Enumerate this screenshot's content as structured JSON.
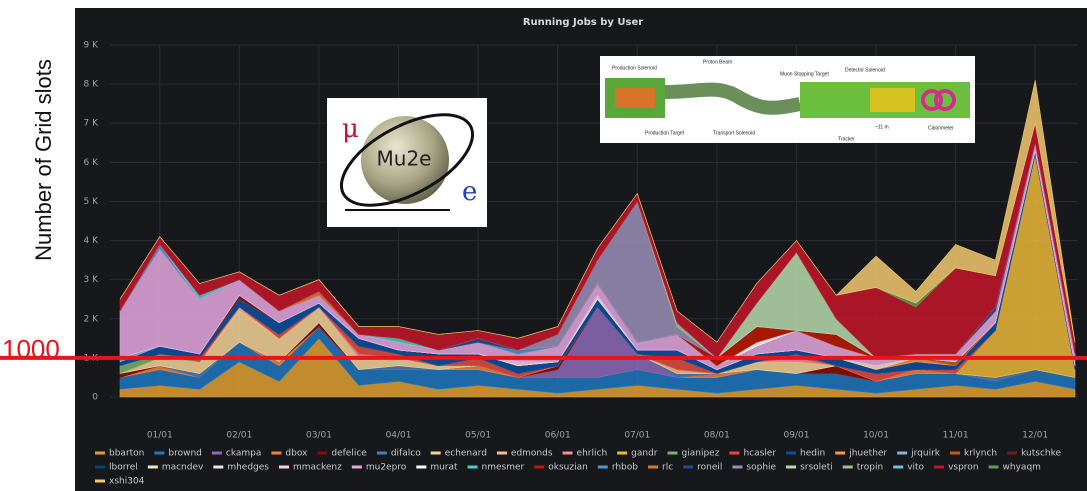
{
  "chart_data": {
    "type": "stacked-area",
    "title": "Running Jobs by User",
    "y_label": "Number of Grid slots",
    "threshold": 1000,
    "categories": [
      null,
      "01/01",
      null,
      "02/01",
      null,
      "03/01",
      null,
      "04/01",
      null,
      "05/01",
      null,
      "06/01",
      null,
      "07/01",
      null,
      "08/01",
      null,
      "09/01",
      null,
      "10/01",
      null,
      "11/01",
      null,
      "12/01",
      null
    ],
    "ylim": [
      0,
      9000
    ],
    "yticks": [
      0,
      {
        "value": 1000,
        "label": "1 K"
      },
      {
        "value": 2000,
        "label": "2 K"
      },
      {
        "value": 3000,
        "label": "3 K"
      },
      {
        "value": 4000,
        "label": "4 K"
      },
      {
        "value": 5000,
        "label": "5 K"
      },
      {
        "value": 6000,
        "label": "6 K"
      },
      {
        "value": 7000,
        "label": "7 K"
      },
      {
        "value": 8000,
        "label": "8 K"
      },
      {
        "value": 9000,
        "label": "9 K"
      }
    ],
    "grid": true,
    "series": [
      {
        "name": "bbarton",
        "color": "#E0A030",
        "values": [
          200,
          300,
          200,
          900,
          400,
          1500,
          300,
          400,
          200,
          300,
          200,
          100,
          200,
          300,
          200,
          100,
          200,
          300,
          200,
          100,
          200,
          300,
          200,
          400,
          200
        ]
      },
      {
        "name": "brownd",
        "color": "#1F78C1",
        "values": [
          300,
          400,
          300,
          500,
          400,
          300,
          400,
          300,
          500,
          400,
          300,
          400,
          300,
          400,
          300,
          400,
          500,
          300,
          400,
          300,
          400,
          300,
          200,
          300,
          300
        ]
      },
      {
        "name": "ckampa",
        "color": "#8E6AB8",
        "values": [
          0,
          0,
          0,
          0,
          0,
          0,
          0,
          0,
          0,
          0,
          0,
          200,
          1800,
          400,
          0,
          0,
          0,
          0,
          0,
          0,
          0,
          0,
          0,
          0,
          0
        ]
      },
      {
        "name": "dbox",
        "color": "#EF843C",
        "values": [
          0,
          100,
          0,
          0,
          100,
          0,
          0,
          0,
          0,
          100,
          0,
          0,
          0,
          0,
          0,
          100,
          0,
          0,
          0,
          0,
          100,
          0,
          0,
          0,
          0
        ]
      },
      {
        "name": "defelice",
        "color": "#890F02",
        "values": [
          100,
          0,
          0,
          0,
          0,
          100,
          0,
          0,
          0,
          0,
          0,
          100,
          0,
          0,
          0,
          0,
          0,
          0,
          200,
          0,
          0,
          0,
          0,
          0,
          0
        ]
      },
      {
        "name": "difalco",
        "color": "#447EBC",
        "values": [
          0,
          0,
          100,
          0,
          0,
          0,
          0,
          100,
          0,
          0,
          0,
          0,
          0,
          0,
          100,
          0,
          0,
          0,
          0,
          0,
          0,
          0,
          100,
          0,
          0
        ]
      },
      {
        "name": "echenard",
        "color": "#F4D598",
        "values": [
          0,
          200,
          300,
          800,
          600,
          400,
          300,
          200,
          100,
          0,
          0,
          0,
          0,
          0,
          0,
          0,
          200,
          300,
          0,
          0,
          0,
          0,
          0,
          0,
          0
        ]
      },
      {
        "name": "edmonds",
        "color": "#F9BA8F",
        "values": [
          0,
          0,
          0,
          100,
          0,
          0,
          0,
          0,
          0,
          0,
          0,
          0,
          0,
          0,
          100,
          0,
          0,
          0,
          0,
          0,
          0,
          0,
          0,
          0,
          0
        ]
      },
      {
        "name": "ehrlich",
        "color": "#F29191",
        "values": [
          0,
          0,
          0,
          0,
          0,
          0,
          100,
          0,
          0,
          0,
          0,
          0,
          0,
          0,
          0,
          0,
          0,
          100,
          0,
          0,
          0,
          0,
          0,
          0,
          0
        ]
      },
      {
        "name": "gandr",
        "color": "#EAB839",
        "values": [
          0,
          0,
          0,
          0,
          0,
          0,
          0,
          0,
          0,
          0,
          0,
          0,
          0,
          0,
          0,
          0,
          0,
          0,
          0,
          0,
          0,
          0,
          1200,
          5500,
          200
        ]
      },
      {
        "name": "gianipez",
        "color": "#7EB26D",
        "values": [
          200,
          100,
          0,
          0,
          0,
          0,
          0,
          0,
          0,
          0,
          0,
          0,
          0,
          0,
          0,
          0,
          0,
          0,
          0,
          0,
          0,
          0,
          0,
          0,
          0
        ]
      },
      {
        "name": "hcasler",
        "color": "#E24D42",
        "values": [
          0,
          0,
          100,
          0,
          100,
          0,
          200,
          100,
          0,
          200,
          100,
          0,
          0,
          0,
          300,
          0,
          0,
          100,
          0,
          200,
          0,
          100,
          0,
          0,
          0
        ]
      },
      {
        "name": "hedin",
        "color": "#0A50A1",
        "values": [
          100,
          200,
          100,
          200,
          300,
          100,
          200,
          100,
          200,
          100,
          200,
          100,
          200,
          100,
          200,
          100,
          200,
          100,
          200,
          100,
          200,
          100,
          200,
          100,
          100
        ]
      },
      {
        "name": "jhuether",
        "color": "#F9934E",
        "values": [
          0,
          0,
          0,
          0,
          0,
          0,
          0,
          0,
          0,
          0,
          0,
          0,
          0,
          0,
          0,
          0,
          0,
          0,
          0,
          0,
          100,
          0,
          0,
          0,
          0
        ]
      },
      {
        "name": "jrquirk",
        "color": "#82B5D8",
        "values": [
          100,
          0,
          0,
          0,
          0,
          0,
          0,
          0,
          0,
          0,
          0,
          0,
          0,
          0,
          0,
          0,
          0,
          0,
          0,
          0,
          0,
          0,
          0,
          0,
          0
        ]
      },
      {
        "name": "krlynch",
        "color": "#C15C17",
        "values": [
          0,
          0,
          0,
          0,
          0,
          0,
          0,
          0,
          0,
          0,
          0,
          0,
          0,
          0,
          0,
          0,
          0,
          0,
          0,
          0,
          0,
          100,
          0,
          0,
          0
        ]
      },
      {
        "name": "kutschke",
        "color": "#6D1F1F",
        "values": [
          0,
          0,
          0,
          100,
          0,
          0,
          0,
          0,
          0,
          0,
          0,
          0,
          0,
          0,
          0,
          0,
          0,
          0,
          0,
          0,
          0,
          0,
          0,
          0,
          0
        ]
      },
      {
        "name": "lborrel",
        "color": "#0A437C",
        "values": [
          0,
          0,
          0,
          0,
          0,
          0,
          0,
          0,
          100,
          0,
          0,
          0,
          0,
          0,
          0,
          0,
          0,
          0,
          0,
          0,
          0,
          0,
          0,
          0,
          0
        ]
      },
      {
        "name": "macndev",
        "color": "#F2E6C0",
        "values": [
          0,
          0,
          0,
          0,
          0,
          0,
          0,
          0,
          0,
          0,
          0,
          0,
          0,
          0,
          0,
          0,
          0,
          0,
          0,
          100,
          0,
          0,
          0,
          0,
          0
        ]
      },
      {
        "name": "mhedges",
        "color": "#E8E8E8",
        "values": [
          0,
          0,
          0,
          0,
          0,
          0,
          0,
          0,
          0,
          0,
          0,
          0,
          100,
          0,
          0,
          0,
          0,
          0,
          0,
          0,
          0,
          0,
          0,
          0,
          0
        ]
      },
      {
        "name": "mmackenz",
        "color": "#F8D0E0",
        "values": [
          0,
          0,
          0,
          0,
          0,
          0,
          0,
          0,
          0,
          0,
          100,
          0,
          0,
          0,
          0,
          0,
          0,
          0,
          0,
          0,
          0,
          0,
          0,
          0,
          0
        ]
      },
      {
        "name": "mu2epro",
        "color": "#E5A8E2",
        "values": [
          1200,
          2500,
          1400,
          400,
          300,
          200,
          100,
          200,
          100,
          300,
          200,
          400,
          300,
          200,
          400,
          100,
          200,
          500,
          300,
          200,
          100,
          200,
          300,
          200,
          300
        ]
      },
      {
        "name": "murat",
        "color": "#FFFFFF",
        "values": [
          0,
          0,
          0,
          0,
          0,
          0,
          0,
          0,
          0,
          0,
          0,
          0,
          0,
          0,
          0,
          0,
          100,
          0,
          0,
          0,
          0,
          0,
          0,
          0,
          0
        ]
      },
      {
        "name": "nmesmer",
        "color": "#4ECDC4",
        "values": [
          0,
          0,
          0,
          0,
          0,
          0,
          0,
          100,
          0,
          0,
          0,
          0,
          0,
          0,
          0,
          0,
          0,
          0,
          0,
          0,
          0,
          0,
          0,
          0,
          0
        ]
      },
      {
        "name": "oksuzian",
        "color": "#BF1B00",
        "values": [
          0,
          0,
          0,
          0,
          0,
          0,
          0,
          0,
          0,
          0,
          0,
          0,
          0,
          0,
          0,
          200,
          400,
          0,
          300,
          0,
          0,
          0,
          0,
          0,
          0
        ]
      },
      {
        "name": "rhbob",
        "color": "#5195CE",
        "values": [
          0,
          100,
          0,
          0,
          0,
          0,
          0,
          0,
          0,
          0,
          100,
          0,
          0,
          0,
          0,
          0,
          0,
          0,
          0,
          0,
          0,
          0,
          0,
          0,
          0
        ]
      },
      {
        "name": "rlc",
        "color": "#E0752D",
        "values": [
          0,
          0,
          0,
          0,
          0,
          100,
          0,
          0,
          0,
          0,
          0,
          0,
          0,
          0,
          0,
          0,
          0,
          0,
          0,
          0,
          0,
          0,
          0,
          0,
          0
        ]
      },
      {
        "name": "roneil",
        "color": "#1F4E8C",
        "values": [
          0,
          0,
          0,
          0,
          0,
          0,
          0,
          0,
          0,
          100,
          0,
          0,
          0,
          0,
          0,
          0,
          0,
          0,
          0,
          0,
          0,
          0,
          100,
          0,
          0
        ]
      },
      {
        "name": "sophie",
        "color": "#9A8FB8",
        "values": [
          0,
          0,
          0,
          0,
          0,
          0,
          0,
          0,
          0,
          0,
          0,
          300,
          600,
          3600,
          200,
          0,
          0,
          0,
          0,
          0,
          0,
          0,
          0,
          0,
          0
        ]
      },
      {
        "name": "srsoleti",
        "color": "#B7DBAB",
        "values": [
          0,
          0,
          0,
          0,
          0,
          0,
          0,
          0,
          0,
          0,
          0,
          0,
          0,
          0,
          0,
          0,
          600,
          2000,
          400,
          0,
          0,
          0,
          0,
          0,
          0
        ]
      },
      {
        "name": "tropin",
        "color": "#9AC48A",
        "values": [
          0,
          0,
          0,
          0,
          0,
          0,
          0,
          0,
          0,
          0,
          0,
          0,
          0,
          0,
          100,
          0,
          0,
          0,
          0,
          0,
          0,
          0,
          0,
          0,
          0
        ]
      },
      {
        "name": "vito",
        "color": "#65C5DB",
        "values": [
          0,
          0,
          100,
          0,
          0,
          0,
          0,
          0,
          0,
          0,
          0,
          0,
          0,
          0,
          0,
          0,
          0,
          0,
          0,
          0,
          0,
          0,
          0,
          0,
          0
        ]
      },
      {
        "name": "vspron",
        "color": "#C4162A",
        "values": [
          300,
          200,
          300,
          200,
          400,
          300,
          200,
          300,
          400,
          200,
          300,
          200,
          300,
          200,
          300,
          400,
          500,
          300,
          600,
          1800,
          1200,
          2200,
          800,
          500,
          300
        ]
      },
      {
        "name": "whyaqm",
        "color": "#629E51",
        "values": [
          0,
          0,
          0,
          0,
          0,
          0,
          0,
          0,
          0,
          0,
          0,
          0,
          0,
          0,
          0,
          0,
          0,
          0,
          0,
          0,
          100,
          0,
          0,
          0,
          0
        ]
      },
      {
        "name": "xshi304",
        "color": "#F2C96D",
        "values": [
          0,
          0,
          0,
          0,
          0,
          0,
          0,
          0,
          0,
          0,
          0,
          0,
          0,
          0,
          0,
          0,
          0,
          0,
          0,
          800,
          300,
          600,
          400,
          1100,
          0
        ]
      }
    ]
  },
  "logo": {
    "mu": "μ",
    "name": "Mu2e",
    "e": "e"
  },
  "diagram": {
    "labels": [
      "Production Solenoid",
      "Proton Beam",
      "Muon Stopping Target",
      "Detector Solenoid",
      "Production Target",
      "Transport Solenoid",
      "Tracker",
      "~11 m",
      "Calorimeter"
    ]
  }
}
